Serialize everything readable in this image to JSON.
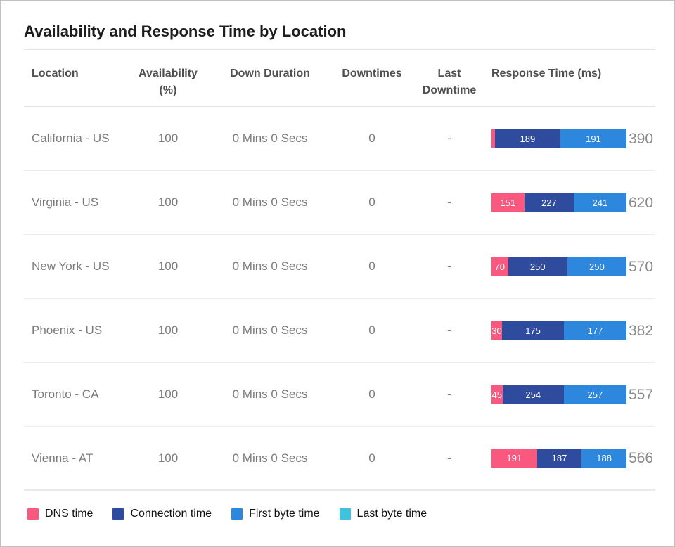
{
  "title": "Availability and Response Time by Location",
  "colors": {
    "dns": "#F9587F",
    "connection": "#2E4B9D",
    "first_byte": "#2C87DD",
    "last_byte": "#3FC3DD"
  },
  "table": {
    "columns": [
      {
        "key": "location",
        "label": "Location"
      },
      {
        "key": "availability",
        "label": "Availability\n(%)"
      },
      {
        "key": "down_duration",
        "label": "Down Duration"
      },
      {
        "key": "downtimes",
        "label": "Downtimes"
      },
      {
        "key": "last_downtime",
        "label": "Last\nDowntime"
      },
      {
        "key": "response_time",
        "label": "Response Time (ms)"
      }
    ],
    "rows": [
      {
        "location": "California - US",
        "availability": "100",
        "down_duration": "0 Mins 0 Secs",
        "downtimes": "0",
        "last_downtime": "-",
        "response": {
          "total_label": "390",
          "total_value": 390,
          "segments": [
            {
              "series": "dns",
              "value": 10,
              "label": ""
            },
            {
              "series": "connection",
              "value": 189,
              "label": "189"
            },
            {
              "series": "first_byte",
              "value": 191,
              "label": "191"
            }
          ]
        }
      },
      {
        "location": "Virginia - US",
        "availability": "100",
        "down_duration": "0 Mins 0 Secs",
        "downtimes": "0",
        "last_downtime": "-",
        "response": {
          "total_label": "620",
          "total_value": 620,
          "segments": [
            {
              "series": "dns",
              "value": 151,
              "label": "151"
            },
            {
              "series": "connection",
              "value": 227,
              "label": "227"
            },
            {
              "series": "first_byte",
              "value": 241,
              "label": "241"
            }
          ]
        }
      },
      {
        "location": "New York - US",
        "availability": "100",
        "down_duration": "0 Mins 0 Secs",
        "downtimes": "0",
        "last_downtime": "-",
        "response": {
          "total_label": "570",
          "total_value": 570,
          "segments": [
            {
              "series": "dns",
              "value": 70,
              "label": "70"
            },
            {
              "series": "connection",
              "value": 250,
              "label": "250"
            },
            {
              "series": "first_byte",
              "value": 250,
              "label": "250"
            }
          ]
        }
      },
      {
        "location": "Phoenix - US",
        "availability": "100",
        "down_duration": "0 Mins 0 Secs",
        "downtimes": "0",
        "last_downtime": "-",
        "response": {
          "total_label": "382",
          "total_value": 382,
          "segments": [
            {
              "series": "dns",
              "value": 30,
              "label": "30"
            },
            {
              "series": "connection",
              "value": 175,
              "label": "175"
            },
            {
              "series": "first_byte",
              "value": 177,
              "label": "177"
            }
          ]
        }
      },
      {
        "location": "Toronto - CA",
        "availability": "100",
        "down_duration": "0 Mins 0 Secs",
        "downtimes": "0",
        "last_downtime": "-",
        "response": {
          "total_label": "557",
          "total_value": 557,
          "segments": [
            {
              "series": "dns",
              "value": 45,
              "label": "45"
            },
            {
              "series": "connection",
              "value": 254,
              "label": "254"
            },
            {
              "series": "first_byte",
              "value": 257,
              "label": "257"
            }
          ]
        }
      },
      {
        "location": "Vienna - AT",
        "availability": "100",
        "down_duration": "0 Mins 0 Secs",
        "downtimes": "0",
        "last_downtime": "-",
        "response": {
          "total_label": "566",
          "total_value": 566,
          "segments": [
            {
              "series": "dns",
              "value": 191,
              "label": "191"
            },
            {
              "series": "connection",
              "value": 187,
              "label": "187"
            },
            {
              "series": "first_byte",
              "value": 188,
              "label": "188"
            }
          ]
        }
      }
    ]
  },
  "legend": [
    {
      "key": "dns",
      "label": "DNS time"
    },
    {
      "key": "connection",
      "label": "Connection time"
    },
    {
      "key": "first_byte",
      "label": "First byte time"
    },
    {
      "key": "last_byte",
      "label": "Last byte time"
    }
  ],
  "chart_data": {
    "type": "bar",
    "subtype": "horizontal-stacked",
    "title": "Response Time (ms)",
    "categories": [
      "California - US",
      "Virginia - US",
      "New York - US",
      "Phoenix - US",
      "Toronto - CA",
      "Vienna - AT"
    ],
    "series": [
      {
        "name": "DNS time",
        "color": "#F9587F",
        "values": [
          10,
          151,
          70,
          30,
          45,
          191
        ]
      },
      {
        "name": "Connection time",
        "color": "#2E4B9D",
        "values": [
          189,
          227,
          250,
          175,
          254,
          187
        ]
      },
      {
        "name": "First byte time",
        "color": "#2C87DD",
        "values": [
          191,
          241,
          250,
          177,
          257,
          188
        ]
      },
      {
        "name": "Last byte time",
        "color": "#3FC3DD",
        "values": [
          0,
          0,
          0,
          0,
          0,
          0
        ]
      }
    ],
    "totals": [
      390,
      620,
      570,
      382,
      557,
      566
    ],
    "bar_value_labels_shown": true,
    "bars_normalized_to_full_width": true,
    "legend_position": "bottom"
  }
}
